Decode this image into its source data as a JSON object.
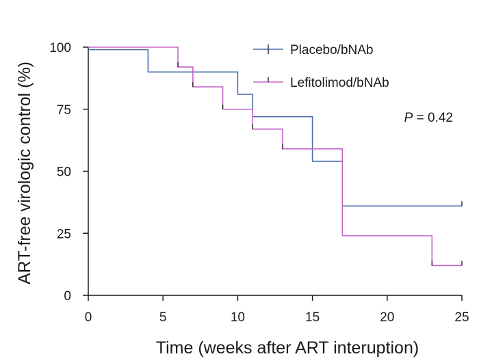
{
  "chart_data": {
    "type": "line",
    "subtype": "kaplan-meier step",
    "xlabel": "Time (weeks after ART interuption)",
    "ylabel": "ART-free virologic control (%)",
    "xlim": [
      0,
      25
    ],
    "ylim": [
      0,
      100
    ],
    "xticks": [
      0,
      5,
      10,
      15,
      20,
      25
    ],
    "yticks": [
      0,
      25,
      50,
      75,
      100
    ],
    "grid": false,
    "legend_position": "top-right",
    "series": [
      {
        "name": "Placebo/bNAb",
        "color": "#4a6fa8",
        "x": [
          0,
          4,
          10,
          11,
          15,
          17,
          25
        ],
        "y": [
          99,
          90,
          81,
          72,
          54,
          36,
          36
        ],
        "censored": [
          25
        ]
      },
      {
        "name": "Lefitolimod/bNAb",
        "color": "#c466c9",
        "x": [
          0,
          6,
          7,
          9,
          11,
          13,
          17,
          23,
          25
        ],
        "y": [
          100,
          92,
          84,
          75,
          67,
          59,
          24,
          12,
          12
        ],
        "censored": [
          6,
          7,
          9,
          11,
          13,
          23,
          25
        ]
      }
    ],
    "annotations": [
      {
        "label": "P",
        "text": " = 0.42"
      }
    ]
  }
}
